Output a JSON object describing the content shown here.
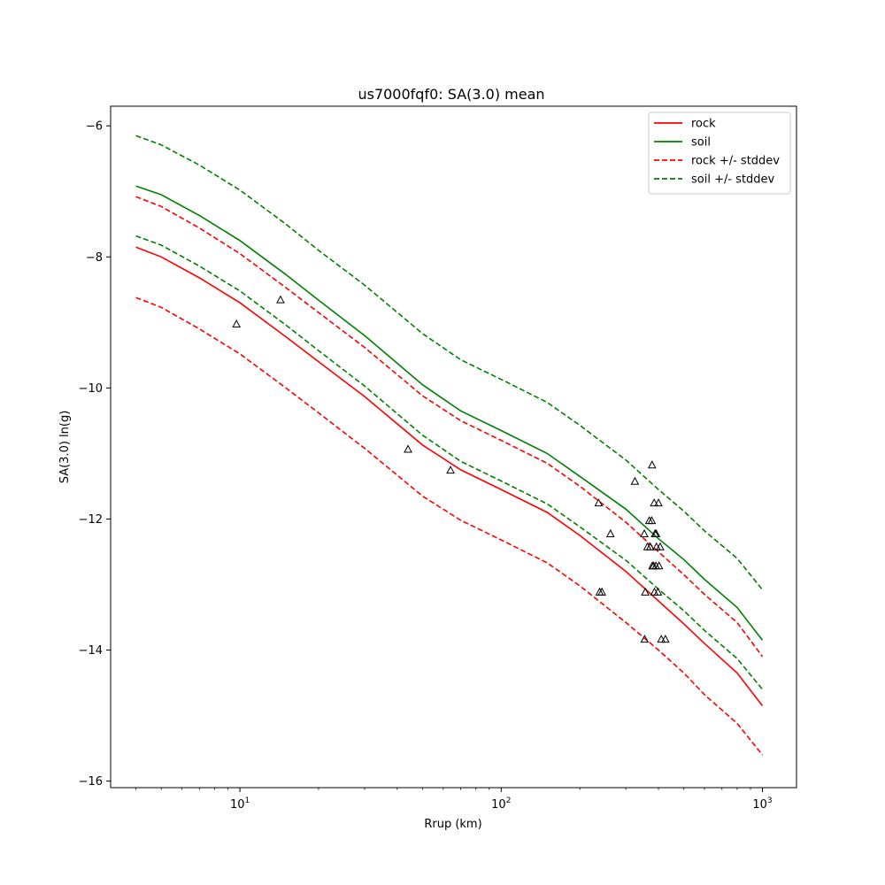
{
  "chart_data": {
    "type": "line",
    "title": "us7000fqf0: SA(3.0) mean",
    "xlabel": "Rrup (km)",
    "ylabel": "SA(3.0) ln(g)",
    "xscale": "log",
    "xlim": [
      3.2,
      1350
    ],
    "ylim": [
      -16.1,
      -5.7
    ],
    "x_ticks": [
      {
        "value": 10,
        "base": "10",
        "exp": "1"
      },
      {
        "value": 100,
        "base": "10",
        "exp": "2"
      },
      {
        "value": 1000,
        "base": "10",
        "exp": "3"
      }
    ],
    "y_ticks": [
      {
        "value": -6,
        "label": "−6"
      },
      {
        "value": -8,
        "label": "−8"
      },
      {
        "value": -10,
        "label": "−10"
      },
      {
        "value": -12,
        "label": "−12"
      },
      {
        "value": -14,
        "label": "−14"
      },
      {
        "value": -16,
        "label": "−16"
      }
    ],
    "grid": false,
    "legend_position": "top-right",
    "x": [
      4,
      5,
      7,
      10,
      15,
      20,
      30,
      50,
      70,
      100,
      150,
      200,
      300,
      400,
      500,
      600,
      800,
      1000
    ],
    "series": [
      {
        "name": "rock",
        "color": "#ff0000",
        "dash": "solid",
        "values": [
          -7.85,
          -8.0,
          -8.32,
          -8.7,
          -9.22,
          -9.6,
          -10.13,
          -10.87,
          -11.25,
          -11.55,
          -11.9,
          -12.25,
          -12.8,
          -13.25,
          -13.6,
          -13.9,
          -14.35,
          -14.85
        ]
      },
      {
        "name": "soil",
        "color": "#008000",
        "dash": "solid",
        "values": [
          -6.92,
          -7.05,
          -7.37,
          -7.75,
          -8.27,
          -8.66,
          -9.2,
          -9.95,
          -10.35,
          -10.65,
          -11.0,
          -11.35,
          -11.85,
          -12.3,
          -12.62,
          -12.92,
          -13.35,
          -13.85
        ]
      },
      {
        "name": "rock +/- stddev",
        "color": "#ff0000",
        "dash": "dashed",
        "values": [
          -7.08,
          -7.23,
          -7.56,
          -7.95,
          -8.47,
          -8.85,
          -9.38,
          -10.12,
          -10.5,
          -10.8,
          -11.15,
          -11.5,
          -12.05,
          -12.5,
          -12.85,
          -13.15,
          -13.58,
          -14.1
        ]
      },
      {
        "name": "",
        "color": "#ff0000",
        "dash": "dashed",
        "values": [
          -8.62,
          -8.77,
          -9.1,
          -9.48,
          -10.0,
          -10.38,
          -10.92,
          -11.65,
          -12.02,
          -12.32,
          -12.67,
          -13.02,
          -13.58,
          -14.0,
          -14.35,
          -14.68,
          -15.12,
          -15.6
        ]
      },
      {
        "name": "soil +/- stddev",
        "color": "#008000",
        "dash": "dashed",
        "values": [
          -6.15,
          -6.29,
          -6.6,
          -6.98,
          -7.5,
          -7.9,
          -8.43,
          -9.17,
          -9.57,
          -9.87,
          -10.22,
          -10.57,
          -11.1,
          -11.55,
          -11.88,
          -12.18,
          -12.6,
          -13.08
        ]
      },
      {
        "name": "",
        "color": "#008000",
        "dash": "dashed",
        "values": [
          -7.68,
          -7.82,
          -8.14,
          -8.52,
          -9.04,
          -9.43,
          -9.97,
          -10.72,
          -11.12,
          -11.42,
          -11.77,
          -12.12,
          -12.63,
          -13.07,
          -13.4,
          -13.7,
          -14.13,
          -14.6
        ]
      }
    ],
    "observations": {
      "marker": "triangle",
      "points": [
        [
          9.7,
          -9.03
        ],
        [
          14.3,
          -8.66
        ],
        [
          44,
          -10.94
        ],
        [
          64,
          -11.26
        ],
        [
          236,
          -11.76
        ],
        [
          238,
          -13.12
        ],
        [
          243,
          -13.12
        ],
        [
          262,
          -12.23
        ],
        [
          325,
          -11.43
        ],
        [
          353,
          -12.23
        ],
        [
          354,
          -13.84
        ],
        [
          356,
          -13.12
        ],
        [
          363,
          -12.43
        ],
        [
          369,
          -12.03
        ],
        [
          372,
          -12.43
        ],
        [
          377,
          -12.03
        ],
        [
          378,
          -11.18
        ],
        [
          379,
          -12.72
        ],
        [
          383,
          -12.72
        ],
        [
          385,
          -11.76
        ],
        [
          386,
          -13.12
        ],
        [
          388,
          -12.23
        ],
        [
          391,
          -12.72
        ],
        [
          392,
          -12.23
        ],
        [
          393,
          -12.43
        ],
        [
          398,
          -13.12
        ],
        [
          400,
          -11.76
        ],
        [
          402,
          -12.72
        ],
        [
          406,
          -12.43
        ],
        [
          410,
          -13.84
        ],
        [
          425,
          -13.84
        ]
      ]
    }
  }
}
